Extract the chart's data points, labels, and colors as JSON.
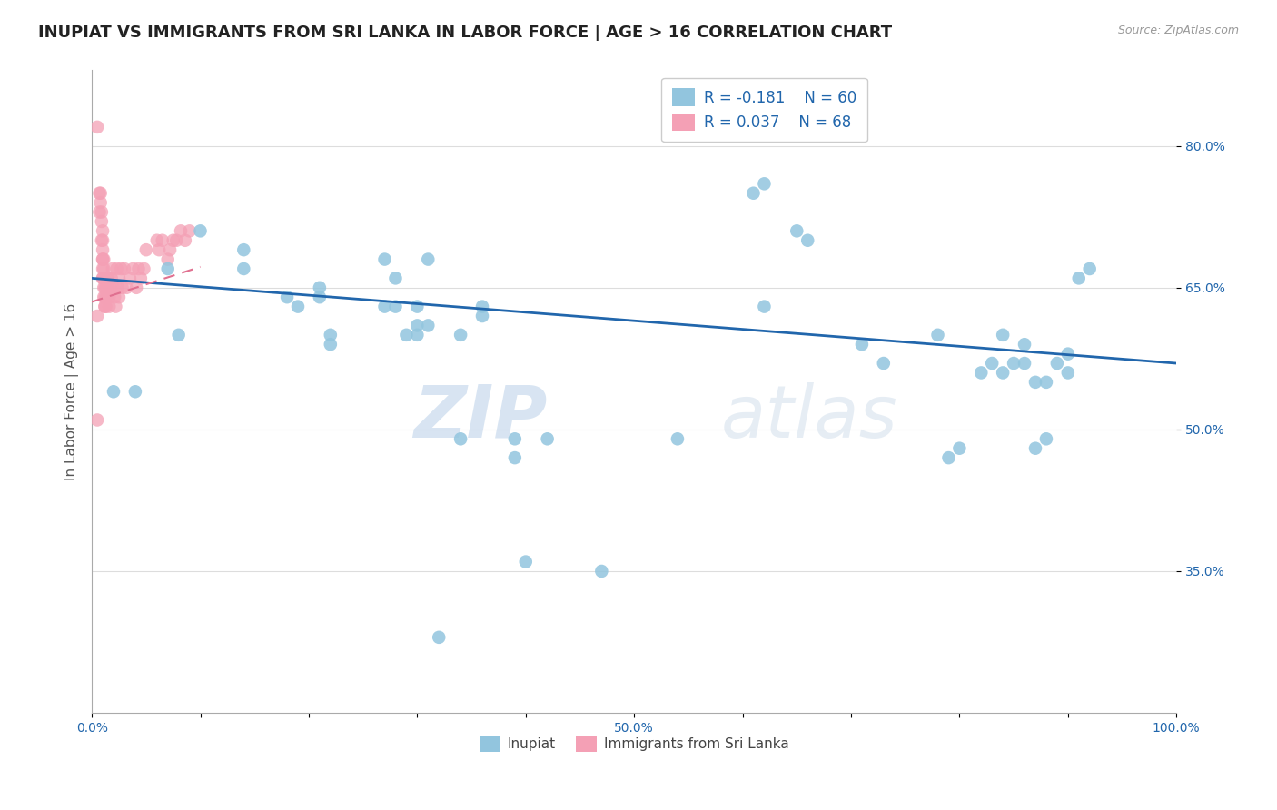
{
  "title": "INUPIAT VS IMMIGRANTS FROM SRI LANKA IN LABOR FORCE | AGE > 16 CORRELATION CHART",
  "source": "Source: ZipAtlas.com",
  "ylabel": "In Labor Force | Age > 16",
  "watermark_zip": "ZIP",
  "watermark_atlas": "atlas",
  "xlim": [
    0.0,
    1.0
  ],
  "ylim": [
    0.2,
    0.88
  ],
  "yticks": [
    0.35,
    0.5,
    0.65,
    0.8
  ],
  "ytick_labels": [
    "35.0%",
    "50.0%",
    "65.0%",
    "80.0%"
  ],
  "xtick_positions": [
    0.0,
    0.1,
    0.2,
    0.3,
    0.4,
    0.5,
    0.6,
    0.7,
    0.8,
    0.9,
    1.0
  ],
  "xtick_labels": [
    "0.0%",
    "",
    "",
    "",
    "",
    "50.0%",
    "",
    "",
    "",
    "",
    "100.0%"
  ],
  "legend_r1": "R = -0.181",
  "legend_n1": "N = 60",
  "legend_r2": "R = 0.037",
  "legend_n2": "N = 68",
  "color_blue": "#92c5de",
  "color_pink": "#f4a0b5",
  "color_blue_line": "#2166ac",
  "color_pink_line": "#e07090",
  "blue_scatter_x": [
    0.02,
    0.04,
    0.07,
    0.08,
    0.1,
    0.14,
    0.14,
    0.18,
    0.19,
    0.21,
    0.21,
    0.22,
    0.22,
    0.27,
    0.27,
    0.28,
    0.28,
    0.29,
    0.3,
    0.3,
    0.3,
    0.31,
    0.31,
    0.32,
    0.34,
    0.34,
    0.36,
    0.36,
    0.39,
    0.39,
    0.4,
    0.42,
    0.47,
    0.54,
    0.61,
    0.62,
    0.62,
    0.65,
    0.66,
    0.71,
    0.73,
    0.78,
    0.79,
    0.8,
    0.82,
    0.83,
    0.84,
    0.84,
    0.85,
    0.86,
    0.86,
    0.87,
    0.87,
    0.88,
    0.88,
    0.89,
    0.9,
    0.9,
    0.91,
    0.92
  ],
  "blue_scatter_y": [
    0.54,
    0.54,
    0.67,
    0.6,
    0.71,
    0.69,
    0.67,
    0.64,
    0.63,
    0.65,
    0.64,
    0.6,
    0.59,
    0.68,
    0.63,
    0.63,
    0.66,
    0.6,
    0.61,
    0.6,
    0.63,
    0.61,
    0.68,
    0.28,
    0.6,
    0.49,
    0.63,
    0.62,
    0.47,
    0.49,
    0.36,
    0.49,
    0.35,
    0.49,
    0.75,
    0.76,
    0.63,
    0.71,
    0.7,
    0.59,
    0.57,
    0.6,
    0.47,
    0.48,
    0.56,
    0.57,
    0.6,
    0.56,
    0.57,
    0.57,
    0.59,
    0.55,
    0.48,
    0.49,
    0.55,
    0.57,
    0.56,
    0.58,
    0.66,
    0.67
  ],
  "pink_scatter_x": [
    0.005,
    0.007,
    0.007,
    0.008,
    0.008,
    0.009,
    0.009,
    0.009,
    0.01,
    0.01,
    0.01,
    0.01,
    0.01,
    0.01,
    0.01,
    0.01,
    0.011,
    0.011,
    0.011,
    0.011,
    0.011,
    0.012,
    0.012,
    0.012,
    0.012,
    0.013,
    0.013,
    0.013,
    0.014,
    0.014,
    0.014,
    0.015,
    0.015,
    0.016,
    0.016,
    0.017,
    0.018,
    0.019,
    0.02,
    0.021,
    0.022,
    0.023,
    0.024,
    0.025,
    0.025,
    0.027,
    0.028,
    0.03,
    0.032,
    0.035,
    0.038,
    0.041,
    0.043,
    0.045,
    0.048,
    0.05,
    0.06,
    0.062,
    0.065,
    0.07,
    0.072,
    0.075,
    0.078,
    0.082,
    0.086,
    0.09,
    0.005,
    0.005
  ],
  "pink_scatter_y": [
    0.82,
    0.75,
    0.73,
    0.75,
    0.74,
    0.72,
    0.73,
    0.7,
    0.71,
    0.7,
    0.69,
    0.68,
    0.68,
    0.67,
    0.66,
    0.66,
    0.68,
    0.67,
    0.66,
    0.65,
    0.64,
    0.65,
    0.64,
    0.63,
    0.63,
    0.65,
    0.64,
    0.63,
    0.66,
    0.65,
    0.64,
    0.66,
    0.65,
    0.64,
    0.63,
    0.65,
    0.66,
    0.67,
    0.65,
    0.64,
    0.63,
    0.67,
    0.65,
    0.64,
    0.66,
    0.67,
    0.65,
    0.67,
    0.65,
    0.66,
    0.67,
    0.65,
    0.67,
    0.66,
    0.67,
    0.69,
    0.7,
    0.69,
    0.7,
    0.68,
    0.69,
    0.7,
    0.7,
    0.71,
    0.7,
    0.71,
    0.51,
    0.62
  ],
  "blue_line_x": [
    0.0,
    1.0
  ],
  "blue_line_y": [
    0.66,
    0.57
  ],
  "pink_line_x": [
    0.0,
    0.1
  ],
  "pink_line_y": [
    0.635,
    0.672
  ],
  "background_color": "#ffffff",
  "grid_color": "#dddddd",
  "title_fontsize": 13,
  "label_fontsize": 11,
  "tick_fontsize": 10,
  "legend_fontsize": 12
}
